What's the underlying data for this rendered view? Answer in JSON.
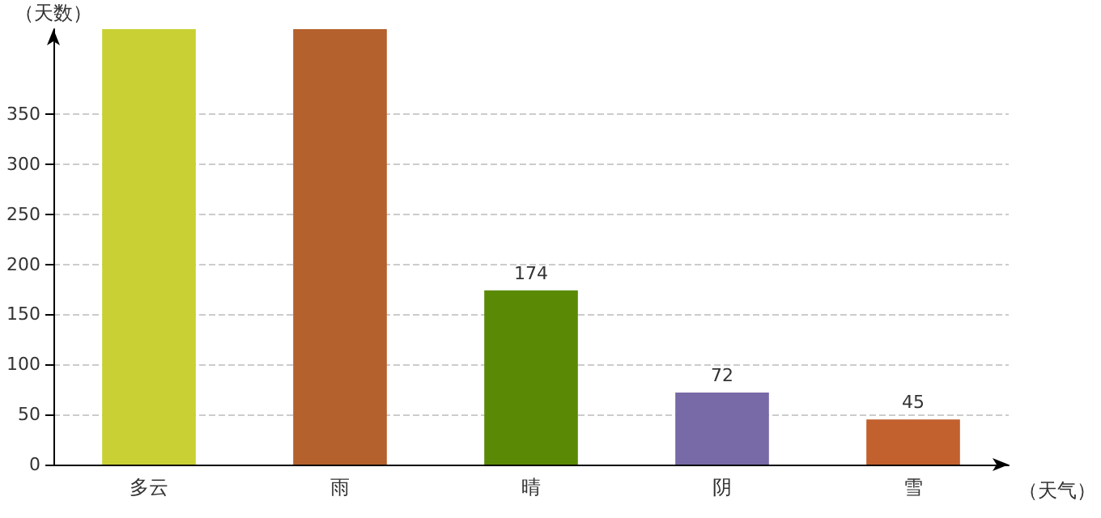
{
  "chart_data": {
    "type": "bar",
    "xlabel": "（天气）",
    "ylabel": "（天数）",
    "categories": [
      "多云",
      "雨",
      "晴",
      "阴",
      "雪"
    ],
    "values": [
      435,
      435,
      174,
      72,
      45
    ],
    "colors": [
      "#c9d033",
      "#b5612d",
      "#5a8a05",
      "#776aa6",
      "#c2612e"
    ],
    "value_labels": [
      null,
      null,
      "174",
      "72",
      "45"
    ],
    "ylim": [
      0,
      435
    ],
    "yticks": [
      0,
      50,
      100,
      150,
      200,
      250,
      300,
      350
    ],
    "grid": "y"
  }
}
